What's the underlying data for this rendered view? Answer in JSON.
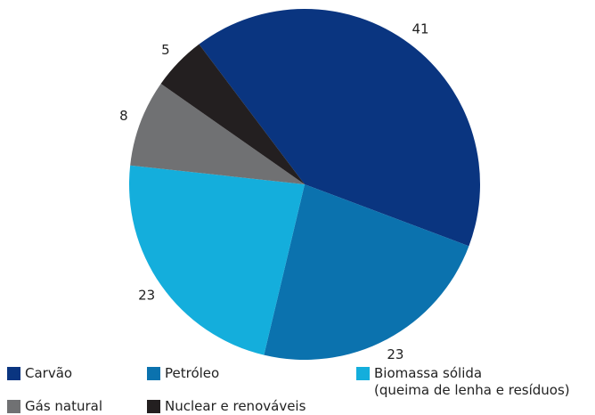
{
  "chart_data": {
    "type": "pie",
    "categories": [
      "Carvão",
      "Petróleo",
      "Biomassa sólida\n(queima de lenha e resíduos)",
      "Gás natural",
      "Nuclear e renováveis"
    ],
    "values": [
      41,
      23,
      23,
      8,
      5
    ],
    "colors": [
      "#0a3580",
      "#0b72ae",
      "#14aedc",
      "#707173",
      "#231f20"
    ]
  }
}
